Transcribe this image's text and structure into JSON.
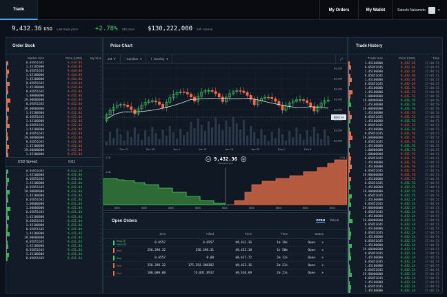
{
  "nav": {
    "active_tab": "Trade",
    "my_orders": "My Orders",
    "my_wallet": "My Wallet",
    "user_name": "Satoshi Nakamoto"
  },
  "ticker": {
    "last_price": "9,432.36",
    "last_price_unit": "USD",
    "last_price_caption": "Last trade price",
    "change": "+2.78%",
    "change_caption": "24h price",
    "volume": "$130,222,000",
    "volume_caption": "24h volume"
  },
  "order_book": {
    "title": "Order Book",
    "col_market_size": "Market Size",
    "col_price": "Price (USD)",
    "col_my_size": "My Size",
    "asks": [
      {
        "size": "0.05851645",
        "price": "9,434.84",
        "my": "-"
      },
      {
        "size": "1.45105000",
        "price": "9,434.84",
        "my": "-"
      },
      {
        "size": "0.05851645",
        "price": "9,434.84",
        "my": "-"
      },
      {
        "size": "1.45100000",
        "price": "9,434.84",
        "my": "-"
      },
      {
        "size": "1.45100000",
        "price": "9,434.84",
        "my": "-"
      },
      {
        "size": "0.05851645",
        "price": "9,434.84",
        "my": "-"
      },
      {
        "size": "1.45100000",
        "price": "9,434.84",
        "my": "-"
      },
      {
        "size": "0.05851645",
        "price": "9,432.84",
        "my": "-"
      },
      {
        "size": "1.00000000",
        "price": "9,432.84",
        "my": "-"
      },
      {
        "size": "19.00000000",
        "price": "9,432.84",
        "my": "-"
      },
      {
        "size": "0.05851645",
        "price": "9,432.84",
        "my": "-"
      },
      {
        "size": "19.00000000",
        "price": "9,432.84",
        "my": "-"
      },
      {
        "size": "1.45100000",
        "price": "9,432.84",
        "my": "-"
      },
      {
        "size": "0.05851645",
        "price": "9,432.84",
        "my": "-"
      },
      {
        "size": "1.45100000",
        "price": "9,432.84",
        "my": "-"
      },
      {
        "size": "0.05851645",
        "price": "9,432.84",
        "my": "-"
      },
      {
        "size": "1.45100000",
        "price": "9,432.84",
        "my": "-"
      },
      {
        "size": "0.05851645",
        "price": "9,432.84",
        "my": "-"
      },
      {
        "size": "19.00000000",
        "price": "9,432.84",
        "my": "-"
      },
      {
        "size": "0.05851645",
        "price": "9,432.84",
        "my": "-"
      },
      {
        "size": "1.45100000",
        "price": "9,432.84",
        "my": "-"
      },
      {
        "size": "19.00000000",
        "price": "9,432.84",
        "my": "-"
      },
      {
        "size": "1.45100000",
        "price": "9,432.84",
        "my": "-"
      }
    ],
    "spread_label": "USD Spread",
    "spread_value": "0.01",
    "bids": [
      {
        "size": "0.05851645",
        "price": "9,432.14",
        "my": "-"
      },
      {
        "size": "1.45100000",
        "price": "9,431.84",
        "my": "-"
      },
      {
        "size": "0.05851645",
        "price": "9,431.84",
        "my": "-"
      },
      {
        "size": "1.45100000",
        "price": "9,431.84",
        "my": "-"
      },
      {
        "size": "0.05851645",
        "price": "9,431.84",
        "my": "-"
      },
      {
        "size": "19.00000000",
        "price": "9,431.84",
        "my": "-"
      },
      {
        "size": "1.45100000",
        "price": "9,431.84",
        "my": "-"
      },
      {
        "size": "0.05851645",
        "price": "9,431.84",
        "my": "-"
      },
      {
        "size": "1.00000000",
        "price": "9,431.84",
        "my": "-"
      },
      {
        "size": "1.00000000",
        "price": "9,431.84",
        "my": "-"
      },
      {
        "size": "0.05851645",
        "price": "9,431.84",
        "my": "-"
      },
      {
        "size": "1.45100000",
        "price": "9,431.84",
        "my": "-"
      },
      {
        "size": "0.05851645",
        "price": "9,431.84",
        "my": "-"
      },
      {
        "size": "1.45100000",
        "price": "9,431.84",
        "my": "-"
      },
      {
        "size": "0.05851645",
        "price": "9,431.84",
        "my": "-"
      },
      {
        "size": "1.45100000",
        "price": "9,431.84",
        "my": "-"
      },
      {
        "size": "19.00000000",
        "price": "9,431.84",
        "my": "-"
      },
      {
        "size": "0.05851645",
        "price": "9,431.84",
        "my": "-"
      },
      {
        "size": "1.45100000",
        "price": "9,431.84",
        "my": "-"
      },
      {
        "size": "0.05851645",
        "price": "9,431.84",
        "my": "-"
      },
      {
        "size": "1.45100000",
        "price": "9,431.84",
        "my": "-"
      },
      {
        "size": "0.05851645",
        "price": "9,431.84",
        "my": "-"
      }
    ]
  },
  "price_chart": {
    "title": "Price Chart",
    "interval": "1M",
    "chart_type": "Candles",
    "overlay": "Overlay",
    "y_ticks": [
      "$1,000",
      "$1,000",
      "$1,000",
      "$1,000",
      "$1,000",
      "$1,000",
      "$1,000",
      "$1,000"
    ],
    "x_ticks": [
      "Dec 21",
      "Dec 28",
      "Jan 4",
      "Jan 11",
      "Jan 18",
      "Jan 25",
      "Feb 1",
      "Feb 8"
    ],
    "current_price_tag": "$888.34",
    "mid_price": "9,432.36",
    "mid_price_caption": "USD Market Price",
    "depth_left_label": "2.7k",
    "depth_left_label2": "1.8k",
    "depth_right_label": "2.7k",
    "depth_right_label2": "1.8k",
    "depth_x_ticks": [
      "$500",
      "$500",
      "$500",
      "$500",
      "$500",
      "$500",
      "$500",
      "$500",
      "$500"
    ]
  },
  "open_orders": {
    "title": "Open Orders",
    "tab_open": "OPEN",
    "tab_fills": "FILLS",
    "col_size": "Size",
    "col_filled": "Filled",
    "col_price": "Price",
    "col_time": "Time",
    "col_status": "Status",
    "rows": [
      {
        "side": "Stop @ 9400.00",
        "side_color": "#4bd36a",
        "size": "0.6557",
        "filled": "0.6557",
        "price": "$9,432.36",
        "time": "1m 10s",
        "status": "Open"
      },
      {
        "side": "Sell",
        "side_color": "#f06b4d",
        "size": "256.398.32",
        "filled": "256.398.31",
        "price": "$9,432.18",
        "time": "1h 50m",
        "status": "Open"
      },
      {
        "side": "Buy",
        "side_color": "#4bd36a",
        "size": "0.6557",
        "filled": "0.00",
        "price": "$9,427.72",
        "time": "2m 12s",
        "status": "Open"
      },
      {
        "side": "Sell",
        "side_color": "#f06b4d",
        "size": "256.398.32",
        "filled": "175.292.388182",
        "price": "$9,432.16",
        "time": "2m 21s",
        "status": "Open"
      },
      {
        "side": "Sell",
        "side_color": "#f06b4d",
        "size": "100.000.00",
        "filled": "76.831.8912",
        "price": "$9,420.69",
        "time": "2m 21s",
        "status": "Open"
      }
    ]
  },
  "trade_history": {
    "title": "Trade History",
    "col_size": "Trade Size",
    "col_price": "Price (USD)",
    "col_time": "Time",
    "rows": [
      {
        "size": "1.45100000",
        "price": "9,432.36",
        "time": "17:40:51",
        "side": "sell"
      },
      {
        "size": "0.05851645",
        "price": "9,432.36",
        "time": "17:40:51",
        "side": "sell"
      },
      {
        "size": "1.45100000",
        "price": "9,432.36",
        "time": "17:40:51",
        "side": "sell"
      },
      {
        "size": "0.05851645",
        "price": "9,432.36",
        "time": "17:40:51",
        "side": "sell"
      },
      {
        "size": "1.45100000",
        "price": "9,432.36",
        "time": "17:40:51",
        "side": "sell"
      },
      {
        "size": "0.05851645",
        "price": "9,432.36",
        "time": "17:40:51",
        "side": "sell"
      },
      {
        "size": "1.45100000",
        "price": "9,431.76",
        "time": "17:40:51",
        "side": "sell"
      },
      {
        "size": "1.45100000",
        "price": "9,431.76",
        "time": "17:40:56",
        "side": "sell"
      },
      {
        "size": "1.00000000",
        "price": "9,431.76",
        "time": "17:40:56",
        "side": "sell"
      },
      {
        "size": "19.00000000",
        "price": "9,431.76",
        "time": "17:40:56",
        "side": "buy"
      },
      {
        "size": "1.45100000",
        "price": "9,431.76",
        "time": "17:40:56",
        "side": "buy"
      },
      {
        "size": "19.00000000",
        "price": "9,431.76",
        "time": "17:40:56",
        "side": "buy"
      },
      {
        "size": "1.45100000",
        "price": "9,431.76",
        "time": "17:40:56",
        "side": "sell"
      },
      {
        "size": "0.05851645",
        "price": "9,431.76",
        "time": "17:40:56",
        "side": "sell"
      },
      {
        "size": "1.45100000",
        "price": "9,431.76",
        "time": "17:40:51",
        "side": "buy"
      },
      {
        "size": "0.05851645",
        "price": "9,431.76",
        "time": "17:40:51",
        "side": "sell"
      },
      {
        "size": "1.45100000",
        "price": "9,431.76",
        "time": "17:40:51",
        "side": "buy"
      },
      {
        "size": "0.05851645",
        "price": "9,431.76",
        "time": "17:40:51",
        "side": "sell"
      },
      {
        "size": "19.00000000",
        "price": "9,431.76",
        "time": "17:40:51",
        "side": "sell"
      },
      {
        "size": "0.05851645",
        "price": "9,431.76",
        "time": "17:40:51",
        "side": "sell"
      },
      {
        "size": "1.45100000",
        "price": "9,431.76",
        "time": "17:40:51",
        "side": "buy"
      },
      {
        "size": "1.00000000",
        "price": "9,431.76",
        "time": "17:40:51",
        "side": "buy"
      },
      {
        "size": "1.00000000",
        "price": "9,431.76",
        "time": "17:40:51",
        "side": "sell"
      },
      {
        "size": "0.05851645",
        "price": "9,431.76",
        "time": "17:40:51",
        "side": "sell"
      },
      {
        "size": "1.45100000",
        "price": "9,431.76",
        "time": "17:40:51",
        "side": "sell"
      },
      {
        "size": "1.45100000",
        "price": "9,431.76",
        "time": "17:40:51",
        "side": "sell"
      },
      {
        "size": "0.05851645",
        "price": "9,431.76",
        "time": "17:40:51",
        "side": "sell"
      },
      {
        "size": "19.00000000",
        "price": "9,431.76",
        "time": "17:40:51",
        "side": "sell"
      },
      {
        "size": "1.45100000",
        "price": "9,431.76",
        "time": "17:40:51",
        "side": "sell"
      },
      {
        "size": "0.05851645",
        "price": "9,431.76",
        "time": "17:40:51",
        "side": "buy"
      },
      {
        "size": "1.45100000",
        "price": "9,432.15",
        "time": "17:40:51",
        "side": "buy"
      },
      {
        "size": "19.00000000",
        "price": "9,432.15",
        "time": "17:40:51",
        "side": "buy"
      },
      {
        "size": "0.05851645",
        "price": "9,432.15",
        "time": "17:40:51",
        "side": "buy"
      },
      {
        "size": "1.45100000",
        "price": "9,432.14",
        "time": "17:40:51",
        "side": "buy"
      },
      {
        "size": "0.05851645",
        "price": "9,432.14",
        "time": "17:40:51",
        "side": "buy"
      },
      {
        "size": "19.00000000",
        "price": "9,432.14",
        "time": "17:40:51",
        "side": "buy"
      },
      {
        "size": "0.05851645",
        "price": "9,432.14",
        "time": "17:40:51",
        "side": "buy"
      },
      {
        "size": "1.45100000",
        "price": "9,432.14",
        "time": "17:40:51",
        "side": "buy"
      },
      {
        "size": "19.00000000",
        "price": "9,432.14",
        "time": "17:40:51",
        "side": "buy"
      },
      {
        "size": "0.05851645",
        "price": "9,432.14",
        "time": "17:40:51",
        "side": "buy"
      },
      {
        "size": "1.45100000",
        "price": "9,432.14",
        "time": "17:40:51",
        "side": "buy"
      },
      {
        "size": "0.05851645",
        "price": "9,432.14",
        "time": "17:40:51",
        "side": "buy"
      },
      {
        "size": "1.45100000",
        "price": "9,432.14",
        "time": "17:40:51",
        "side": "buy"
      },
      {
        "size": "0.05851645",
        "price": "9,432.14",
        "time": "17:40:51",
        "side": "buy"
      },
      {
        "size": "1.45100000",
        "price": "9,432.14",
        "time": "17:40:51",
        "side": "buy"
      },
      {
        "size": "19.00000000",
        "price": "9,432.14",
        "time": "17:40:51",
        "side": "buy"
      },
      {
        "size": "0.05851645",
        "price": "9,432.14",
        "time": "17:40:51",
        "side": "buy"
      },
      {
        "size": "1.45100000",
        "price": "9,432.14",
        "time": "17:40:51",
        "side": "buy"
      },
      {
        "size": "0.05851645",
        "price": "9,432.14",
        "time": "17:40:51",
        "side": "buy"
      },
      {
        "size": "1.45100000",
        "price": "9,432.14",
        "time": "17:40:51",
        "side": "buy"
      },
      {
        "size": "0.05851645",
        "price": "9,432.14",
        "time": "17:40:51",
        "side": "buy"
      },
      {
        "size": "19.00000000",
        "price": "9,432.14",
        "time": "17:40:51",
        "side": "buy"
      },
      {
        "size": "0.05851645",
        "price": "9,432.14",
        "time": "17:40:51",
        "side": "buy"
      },
      {
        "size": "1.45100000",
        "price": "9,432.14",
        "time": "17:40:51",
        "side": "buy"
      },
      {
        "size": "0.05851645",
        "price": "9,432.14",
        "time": "17:40:51",
        "side": "buy"
      },
      {
        "size": "1.45100000",
        "price": "9,432.14",
        "time": "17:40:51",
        "side": "buy"
      }
    ]
  },
  "colors": {
    "ask": "#f06b4d",
    "bid": "#4bd36a",
    "background": "#0b121b",
    "panel": "#121c28",
    "accent": "#4da3ff"
  }
}
